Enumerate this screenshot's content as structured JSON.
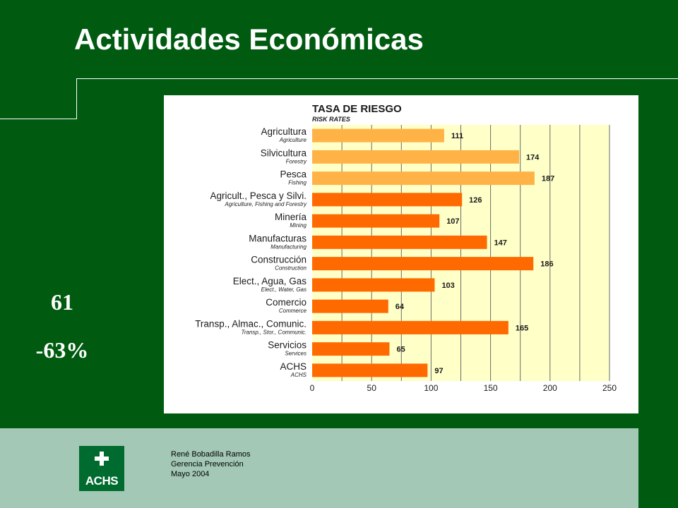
{
  "slide": {
    "title": "Actividades Económicas",
    "stats": [
      "61",
      "-63%"
    ]
  },
  "footer": {
    "logo_text": "ACHS",
    "lines": [
      "René Bobadilla Ramos",
      "Gerencia Prevención",
      "Mayo 2004"
    ]
  },
  "colors": {
    "background": "#005a10",
    "footer": "#a3c8b6",
    "bar_light": "#ffb347",
    "bar_dark": "#ff6a00",
    "plot_bg": "#ffffc8"
  },
  "chart_data": {
    "type": "bar",
    "orientation": "horizontal",
    "title": "TASA DE RIESGO",
    "subtitle": "RISK RATES",
    "categories": [
      "Agricultura",
      "Silvicultura",
      "Pesca",
      "Agricult., Pesca y Silvi.",
      "Minería",
      "Manufacturas",
      "Construcción",
      "Elect., Agua, Gas",
      "Comercio",
      "Transp., Almac., Comunic.",
      "Servicios",
      "ACHS"
    ],
    "categories_en": [
      "Agriculture",
      "Forestry",
      "Fishing",
      "Agriculture, Fishing and Forestry",
      "Mining",
      "Manufacturing",
      "Construction",
      "Elect., Water, Gas",
      "Commerce",
      "Transp., Stor., Communic.",
      "Services",
      "ACHS"
    ],
    "values": [
      111,
      174,
      187,
      126,
      107,
      147,
      186,
      103,
      64,
      165,
      65,
      97
    ],
    "bar_color_groups": [
      "light",
      "light",
      "light",
      "dark",
      "dark",
      "dark",
      "dark",
      "dark",
      "dark",
      "dark",
      "dark",
      "dark"
    ],
    "xlim": [
      0,
      250
    ],
    "xticks": [
      0,
      50,
      100,
      150,
      200,
      250
    ],
    "grid": true
  }
}
